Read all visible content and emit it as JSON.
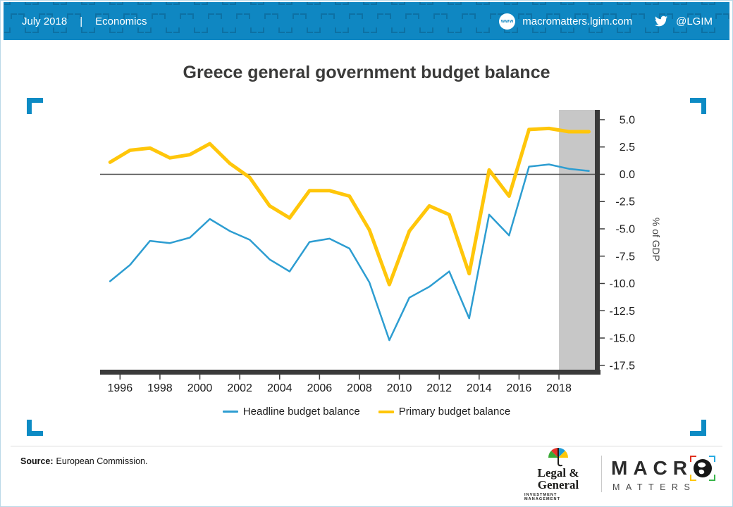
{
  "header": {
    "date": "July 2018",
    "separator": "|",
    "section": "Economics",
    "website": "macromatters.lgim.com",
    "twitter_handle": "@LGIM",
    "www_icon_label": "www",
    "bg_color": "#0f87c2"
  },
  "chart_data": {
    "type": "line",
    "title": "Greece general government budget balance",
    "ylabel": "% of GDP",
    "x": [
      1995,
      1996,
      1997,
      1998,
      1999,
      2000,
      2001,
      2002,
      2003,
      2004,
      2005,
      2006,
      2007,
      2008,
      2009,
      2010,
      2011,
      2012,
      2013,
      2014,
      2015,
      2016,
      2017,
      2018,
      2019
    ],
    "series": [
      {
        "name": "Headline budget balance",
        "color": "#2d9dd1",
        "values": [
          -9.8,
          -8.3,
          -6.1,
          -6.3,
          -5.8,
          -4.1,
          -5.2,
          -6.0,
          -7.8,
          -8.9,
          -6.2,
          -5.9,
          -6.8,
          -9.9,
          -15.2,
          -11.3,
          -10.3,
          -8.9,
          -13.2,
          -3.7,
          -5.6,
          0.7,
          0.9,
          0.5,
          0.3
        ]
      },
      {
        "name": "Primary budget balance",
        "color": "#ffc60a",
        "values": [
          1.1,
          2.2,
          2.4,
          1.5,
          1.8,
          2.8,
          1.0,
          -0.3,
          -2.9,
          -4.0,
          -1.5,
          -1.5,
          -2.0,
          -5.1,
          -10.1,
          -5.2,
          -2.9,
          -3.7,
          -9.1,
          0.4,
          -2.0,
          4.1,
          4.2,
          3.9,
          3.9
        ]
      }
    ],
    "xticks": [
      1996,
      1998,
      2000,
      2002,
      2004,
      2006,
      2008,
      2010,
      2012,
      2014,
      2016,
      2018
    ],
    "yticks": [
      5.0,
      2.5,
      0.0,
      -2.5,
      -5.0,
      -7.5,
      -10.0,
      -12.5,
      -15.0,
      -17.5
    ],
    "xlim": [
      1994.5,
      2019.3
    ],
    "ylim": [
      -17.9,
      5.9
    ],
    "zero_line": true,
    "grid": false,
    "legend_position": "bottom",
    "forecast_band": {
      "from": 2017.5,
      "to": 2019.3,
      "color": "#c7c7c7"
    }
  },
  "footer": {
    "source_label": "Source:",
    "source_text": "European Commission.",
    "logo": {
      "brand_line1": "Legal &",
      "brand_line2": "General",
      "brand_line3": "INVESTMENT MANAGEMENT",
      "macro_word": "MACR",
      "matters_word": "MATTERS"
    }
  }
}
